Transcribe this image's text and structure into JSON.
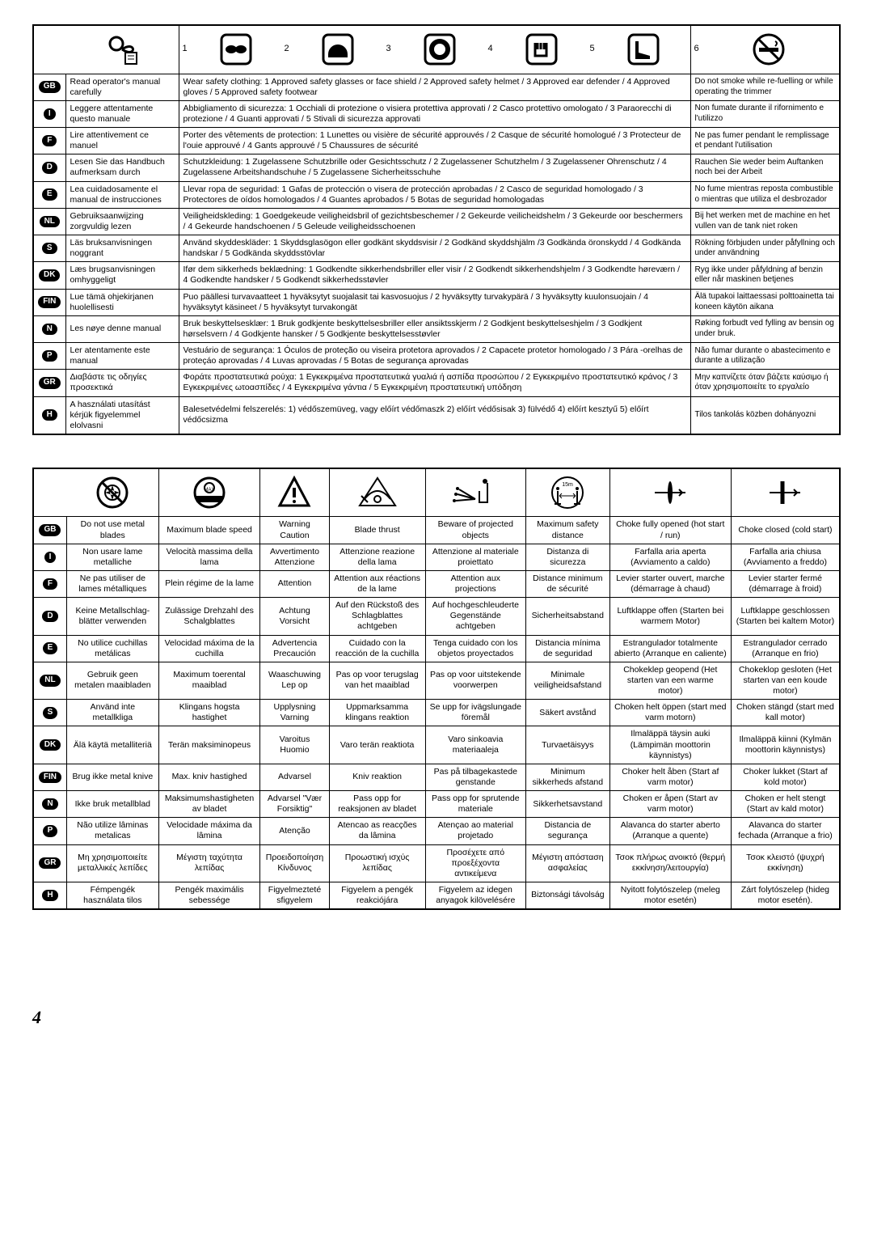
{
  "page_number": "4",
  "languages": [
    "GB",
    "I",
    "F",
    "D",
    "E",
    "NL",
    "S",
    "DK",
    "FIN",
    "N",
    "P",
    "GR",
    "H"
  ],
  "table1": {
    "icon_numbers": [
      "1",
      "2",
      "3",
      "4",
      "5",
      "6"
    ],
    "rows": [
      {
        "lang": "GB",
        "c1": "Read operator's manual carefully",
        "c2": "Wear safety clothing: 1 Approved safety glasses or face shield / 2 Approved safety helmet / 3 Approved ear defender / 4 Approved gloves / 5 Approved safety footwear",
        "c3": "Do not smoke while re-fuelling or while operating the trimmer"
      },
      {
        "lang": "I",
        "c1": "Leggere attentamente questo manuale",
        "c2": "Abbigliamento di sicurezza: 1 Occhiali di protezione o visiera protettiva approvati / 2 Casco protettivo omologato / 3 Paraorecchi di protezione / 4 Guanti approvati / 5 Stivali di sicurezza approvati",
        "c3": "Non fumate durante il rifornimento e l'utilizzo"
      },
      {
        "lang": "F",
        "c1": "Lire attentivement ce manuel",
        "c2": "Porter des vêtements de protection: 1 Lunettes ou visière de sécurité approuvés / 2 Casque de sécurité homologué / 3 Protecteur de l'ouie approuvé / 4 Gants approuvé / 5 Chaussures de sécurité",
        "c3": "Ne pas fumer pendant le remplissage et pendant l'utilisation"
      },
      {
        "lang": "D",
        "c1": "Lesen Sie das Handbuch aufmerksam durch",
        "c2": "Schutzkleidung: 1 Zugelassene Schutzbrille oder Gesichtsschutz / 2 Zugelassener Schutzhelm / 3 Zugelassener Ohrenschutz / 4 Zugelassene Arbeitshandschuhe / 5 Zugelassene Sicherheitsschuhe",
        "c3": "Rauchen Sie weder beim Auftanken noch bei der Arbeit"
      },
      {
        "lang": "E",
        "c1": "Lea cuidadosamente el manual de instrucciones",
        "c2": "Llevar ropa de seguridad: 1 Gafas de protección o visera de protección aprobadas / 2 Casco de seguridad homologado / 3 Protectores de oídos homologados / 4 Guantes aprobados / 5 Botas de seguridad homologadas",
        "c3": "No fume mientras reposta combustible o mientras que utiliza el desbrozador"
      },
      {
        "lang": "NL",
        "c1": "Gebruiksaanwijzing zorgvuldig lezen",
        "c2": "Veiligheidskleding: 1 Goedgekeude veiligheidsbril of gezichtsbeschemer / 2 Gekeurde veilicheidshelm / 3 Gekeurde oor beschermers / 4 Gekeurde handschoenen / 5 Geleude veiligheidsschoenen",
        "c3": "Bij het werken met de machine en het vullen van de tank niet roken"
      },
      {
        "lang": "S",
        "c1": "Läs bruksanvisningen noggrant",
        "c2": "Använd skyddeskläder: 1 Skyddsglasögon eller godkänt skyddsvisir / 2 Godkänd skyddshjälm /3 Godkända öronskydd / 4 Godkända handskar / 5 Godkända skyddsstövlar",
        "c3": "Rökning förbjuden under påfyllning och under användning"
      },
      {
        "lang": "DK",
        "c1": "Læs brugsanvisningen omhyggeligt",
        "c2": "Ifør dem sikkerheds beklædning: 1 Godkendte sikkerhendsbriller eller visir / 2 Godkendt sikkerhendshjelm / 3 Godkendte høreværn / 4 Godkendte handsker / 5 Godkendt sikkerhedsstøvler",
        "c3": "Ryg ikke under påfyldning af benzin eller når maskinen betjenes"
      },
      {
        "lang": "FIN",
        "c1": "Lue tämä ohjekirjanen huolellisesti",
        "c2": "Puo päällesi turvavaatteet 1 hyväksytyt suojalasit tai kasvosuojus / 2 hyväksytty turvakypärä / 3 hyväksytty kuulonsuojain / 4 hyväksytyt käsineet / 5 hyväksytyt turvakongät",
        "c3": "Älä tupakoi laittaessasi polttoainetta tai koneen käytön aikana"
      },
      {
        "lang": "N",
        "c1": "Les nøye denne manual",
        "c2": "Bruk beskyttelsesklær: 1 Bruk godkjente beskyttelsesbriller eller ansiktsskjerm / 2 Godkjent beskyttelseshjelm / 3 Godkjent hørselsvern / 4 Godkjente hansker / 5 Godkjente beskyttelsesstøvler",
        "c3": "Røking forbudt ved fylling av bensin og under bruk."
      },
      {
        "lang": "P",
        "c1": "Ler atentamente este manual",
        "c2": "Vestuário de segurança: 1 Óculos de proteção ou viseira protetora aprovados / 2 Capacete protetor homologado / 3 Pára -orelhas de proteçáo aprovadas / 4 Luvas aprovadas / 5 Botas de segurança aprovadas",
        "c3": "Não fumar durante o abastecimento e durante a utilização"
      },
      {
        "lang": "GR",
        "c1": "Διαβάστε τις οδηγίες προσεκτικά",
        "c2": "Φοράτε προστατευτικά ρούχα: 1 Εγκεκριμένα προστατευτικά γυαλιά ή ασπίδα προσώπου / 2 Εγκεκριμένο προστατευτικό κράνος / 3 Εγκεκριμένες ωτοασπίδες / 4 Εγκεκριμένα γάντια / 5 Εγκεκριμένη προστατευτική υπόδηση",
        "c3": "Μην καπνίζετε όταν βάζετε καύσιμο ή όταν χρησιμοποιείτε το εργαλείο"
      },
      {
        "lang": "H",
        "c1": "A használati utasítást kérjük figyelemmel elolvasni",
        "c2": "Balesetvédelmi felszerelés: 1) védőszemüveg, vagy előírt védőmaszk 2) előírt védősisak 3) fülvédő 4) előírt kesztyű 5) előírt védőcsizma",
        "c3": "Tilos tankolás közben dohányozni"
      }
    ]
  },
  "table2": {
    "rows": [
      {
        "lang": "GB",
        "c": [
          "Do not use metal blades",
          "Maximum blade speed",
          "Warning Caution",
          "Blade thrust",
          "Beware of projected objects",
          "Maximum safety distance",
          "Choke fully opened (hot start / run)",
          "Choke closed (cold start)"
        ]
      },
      {
        "lang": "I",
        "c": [
          "Non usare lame metalliche",
          "Velocità massima della lama",
          "Avvertimento Attenzione",
          "Attenzione reazione della lama",
          "Attenzione al materiale proiettato",
          "Distanza di sicurezza",
          "Farfalla aria aperta (Avviamento a caldo)",
          "Farfalla aria chiusa (Avviamento a freddo)"
        ]
      },
      {
        "lang": "F",
        "c": [
          "Ne pas utiliser de lames métalliques",
          "Plein régime de la lame",
          "Attention",
          "Attention aux réactions de la lame",
          "Attention aux projections",
          "Distance minimum de sécurité",
          "Levier starter ouvert, marche (démarrage à chaud)",
          "Levier starter fermé (démarrage à froid)"
        ]
      },
      {
        "lang": "D",
        "c": [
          "Keine Metallschlag-blätter verwenden",
          "Zulässige Drehzahl des Schalgblattes",
          "Achtung Vorsicht",
          "Auf den Rückstoß des Schlagblattes achtgeben",
          "Auf hochgeschleuderte Gegenstände achtgeben",
          "Sicherheitsabstand",
          "Luftklappe offen (Starten bei warmem Motor)",
          "Luftklappe geschlossen (Starten bei kaltem Motor)"
        ]
      },
      {
        "lang": "E",
        "c": [
          "No utilice cuchillas metálicas",
          "Velocidad máxima de la cuchilla",
          "Advertencia Precaución",
          "Cuidado con la reacción de la cuchilla",
          "Tenga cuidado con los objetos proyectados",
          "Distancia mínima de seguridad",
          "Estrangulador totalmente abierto (Arranque en caliente)",
          "Estrangulador cerrado (Arranque en frio)"
        ]
      },
      {
        "lang": "NL",
        "c": [
          "Gebruik geen metalen maaibladen",
          "Maximum toerental maaiblad",
          "Waaschuwing Lep op",
          "Pas op voor terugslag van het maaiblad",
          "Pas op voor uitstekende voorwerpen",
          "Minimale veiligheidsafstand",
          "Chokeklep geopend (Het starten van een warme motor)",
          "Chokeklop gesloten (Het starten van een koude motor)"
        ]
      },
      {
        "lang": "S",
        "c": [
          "Använd inte metallkliga",
          "Klingans hogsta hastighet",
          "Upplysning Varning",
          "Uppmarksamma klingans reaktion",
          "Se upp for ivägslungade föremål",
          "Säkert avstånd",
          "Choken helt öppen (start med varm motorn)",
          "Choken stängd (start med kall motor)"
        ]
      },
      {
        "lang": "DK",
        "c": [
          "Älä käytä metalliteriä",
          "Terän maksiminopeus",
          "Varoitus Huomio",
          "Varo terän reaktiota",
          "Varo sinkoavia materiaaleja",
          "Turvaetäisyys",
          "Ilmaläppä täysin auki (Lämpimän moottorin käynnistys)",
          "Ilmaläppä kiinni (Kylmän moottorin käynnistys)"
        ]
      },
      {
        "lang": "FIN",
        "c": [
          "Brug ikke metal knive",
          "Max. kniv hastighed",
          "Advarsel",
          "Kniv reaktion",
          "Pas på tilbagekastede genstande",
          "Minimum sikkerheds afstand",
          "Choker helt åben (Start af varm motor)",
          "Choker lukket (Start af kold motor)"
        ]
      },
      {
        "lang": "N",
        "c": [
          "Ikke bruk metallblad",
          "Maksimumshastigheten av bladet",
          "Advarsel \"Vær Forsiktig\"",
          "Pass opp for reaksjonen av bladet",
          "Pass opp for sprutende materiale",
          "Sikkerhetsavstand",
          "Choken er åpen (Start av varm motor)",
          "Choken er helt stengt (Start av kald motor)"
        ]
      },
      {
        "lang": "P",
        "c": [
          "Não utilize lâminas metalicas",
          "Velocidade máxima da lâmina",
          "Atenção",
          "Atencao as reacções da lâmina",
          "Atençao ao material projetado",
          "Distancia de segurança",
          "Alavanca do starter aberto (Arranque a quente)",
          "Alavanca do starter fechada (Arranque a frio)"
        ]
      },
      {
        "lang": "GR",
        "c": [
          "Μη χρησιμοποιείτε μεταλλικές λεπίδες",
          "Μέγιστη ταχύτητα λεπίδας",
          "Προειδοποίηση Κίνδυνος",
          "Προωστική ισχύς λεπίδας",
          "Προσέχετε από προεξέχοντα αντικείμενα",
          "Μέγιστη απόσταση ασφαλείας",
          "Τσοκ πλήρως ανοικτό (θερμή εκκίνηση/λειτουργία)",
          "Τσοκ κλειστό (ψυχρή εκκίνηση)"
        ]
      },
      {
        "lang": "H",
        "c": [
          "Fémpengék használata tilos",
          "Pengék maximális sebessége",
          "Figyelmezteté sfigyelem",
          "Figyelem a pengék reakciójára",
          "Figyelem az idegen anyagok kilövelésére",
          "Biztonsági távolság",
          "Nyitott folytószelep (meleg motor esetén)",
          "Zárt folytószelep (hideg motor esetén)."
        ]
      }
    ]
  }
}
